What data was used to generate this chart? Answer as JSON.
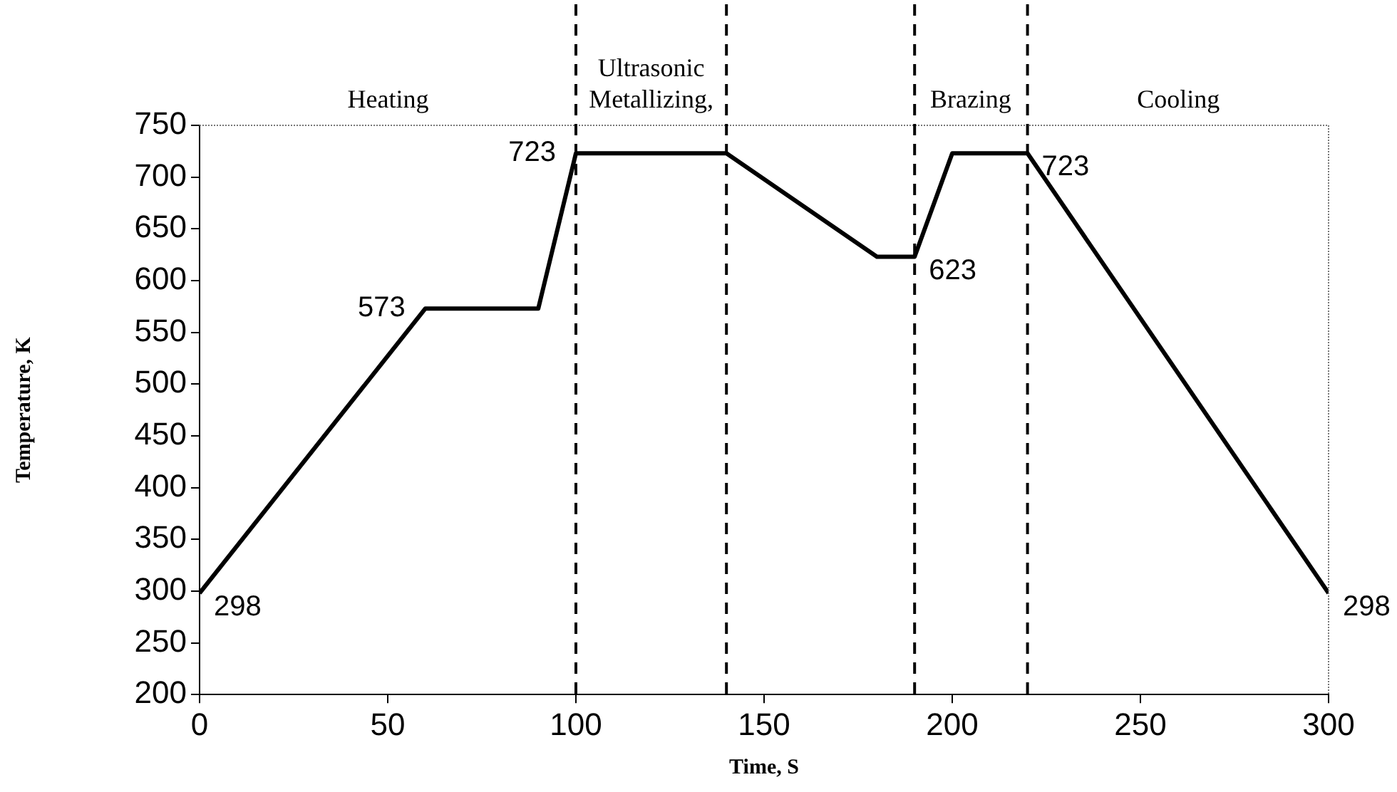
{
  "chart_data": {
    "type": "line",
    "xlabel": "Time, S",
    "ylabel": "Temperature, K",
    "x": [
      0,
      60,
      90,
      100,
      140,
      180,
      190,
      200,
      220,
      300
    ],
    "series": [
      {
        "color": "#000000",
        "values": [
          298,
          573,
          573,
          723,
          723,
          623,
          623,
          723,
          723,
          298
        ]
      }
    ],
    "xlim": [
      0,
      300
    ],
    "xticks": [
      0,
      50,
      100,
      150,
      200,
      250,
      300
    ],
    "ylim": [
      200,
      750
    ],
    "yticks": [
      200,
      250,
      300,
      350,
      400,
      450,
      500,
      550,
      600,
      650,
      700,
      750
    ],
    "grid": false,
    "legend": false,
    "marker": "none",
    "line_style": "solid",
    "ref_lines": [
      {
        "axis": "x",
        "value": 100,
        "line_style": "dashed",
        "color": "#000000"
      },
      {
        "axis": "x",
        "value": 140,
        "line_style": "dashed",
        "color": "#000000"
      },
      {
        "axis": "x",
        "value": 190,
        "line_style": "dashed",
        "color": "#000000"
      },
      {
        "axis": "x",
        "value": 220,
        "line_style": "dashed",
        "color": "#000000"
      }
    ],
    "annotations": [
      "Heating",
      "Ultrasonic Metallizing,",
      "Brazing",
      "Cooling",
      {
        "text": "298",
        "x": 0,
        "y": 298
      },
      {
        "text": "573",
        "x": 60,
        "y": 573
      },
      {
        "text": "723",
        "x": 100,
        "y": 723
      },
      {
        "text": "623",
        "x": 190,
        "y": 623
      },
      {
        "text": "723",
        "x": 220,
        "y": 723
      },
      {
        "text": "298",
        "x": 300,
        "y": 298
      }
    ]
  }
}
